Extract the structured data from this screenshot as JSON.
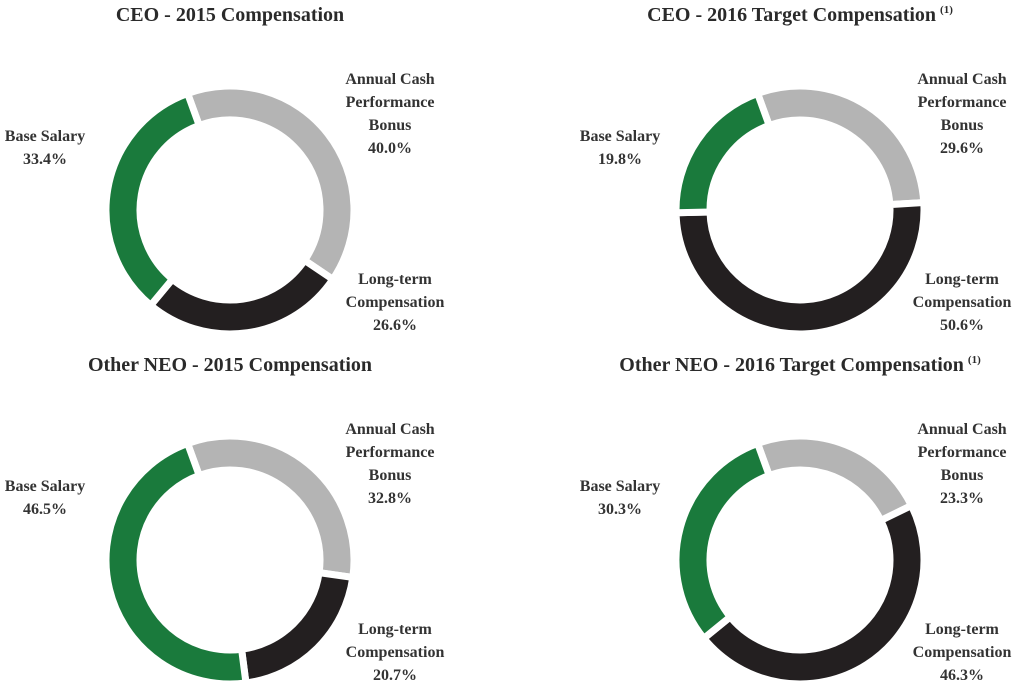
{
  "chart_data": [
    {
      "type": "pie",
      "title": "CEO - 2015 Compensation",
      "categories": [
        "Annual Cash Performance Bonus",
        "Long-term Compensation",
        "Base Salary"
      ],
      "values": [
        40.0,
        26.6,
        33.4
      ],
      "value_labels": [
        "40.0%",
        "26.6%",
        "33.4%"
      ],
      "colors": [
        "#b4b4b4",
        "#231f20",
        "#1a7a3c"
      ]
    },
    {
      "type": "pie",
      "title": "CEO - 2016 Target Compensation",
      "title_note": "(1)",
      "categories": [
        "Annual Cash Performance Bonus",
        "Long-term Compensation",
        "Base Salary"
      ],
      "values": [
        29.6,
        50.6,
        19.8
      ],
      "value_labels": [
        "29.6%",
        "50.6%",
        "19.8%"
      ],
      "colors": [
        "#b4b4b4",
        "#231f20",
        "#1a7a3c"
      ]
    },
    {
      "type": "pie",
      "title": "Other NEO - 2015 Compensation",
      "categories": [
        "Annual Cash Performance Bonus",
        "Long-term Compensation",
        "Base Salary"
      ],
      "values": [
        32.8,
        20.7,
        46.5
      ],
      "value_labels": [
        "32.8%",
        "20.7%",
        "46.5%"
      ],
      "colors": [
        "#b4b4b4",
        "#231f20",
        "#1a7a3c"
      ]
    },
    {
      "type": "pie",
      "title": "Other NEO - 2016 Target Compensation",
      "title_note": "(1)",
      "categories": [
        "Annual Cash Performance Bonus",
        "Long-term Compensation",
        "Base Salary"
      ],
      "values": [
        23.3,
        46.3,
        30.3
      ],
      "value_labels": [
        "23.3%",
        "46.3%",
        "30.3%"
      ],
      "colors": [
        "#b4b4b4",
        "#231f20",
        "#1a7a3c"
      ]
    }
  ]
}
